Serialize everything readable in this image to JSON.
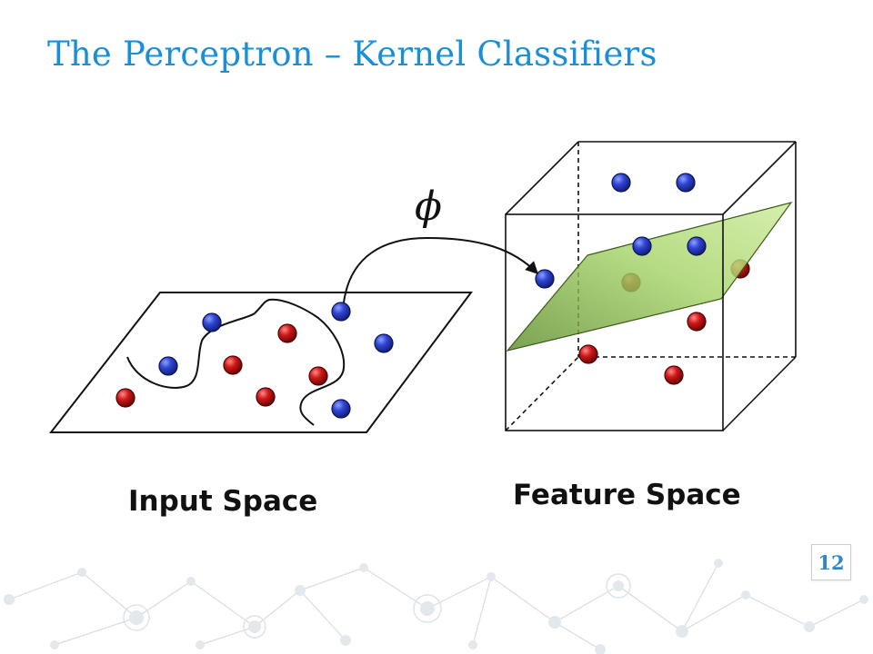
{
  "slide": {
    "title": "The Perceptron – Kernel Classifiers",
    "page_number": "12"
  },
  "diagram": {
    "mapping_symbol": "ϕ",
    "input_space_label": "Input Space",
    "feature_space_label": "Feature Space",
    "colors": {
      "class_a_blue": "#2a3fc4",
      "class_b_red": "#c01414",
      "hyperplane_green": "#8fc74a",
      "title_blue": "#1a8fd8"
    },
    "icons": [
      "background-network-decoration"
    ]
  }
}
